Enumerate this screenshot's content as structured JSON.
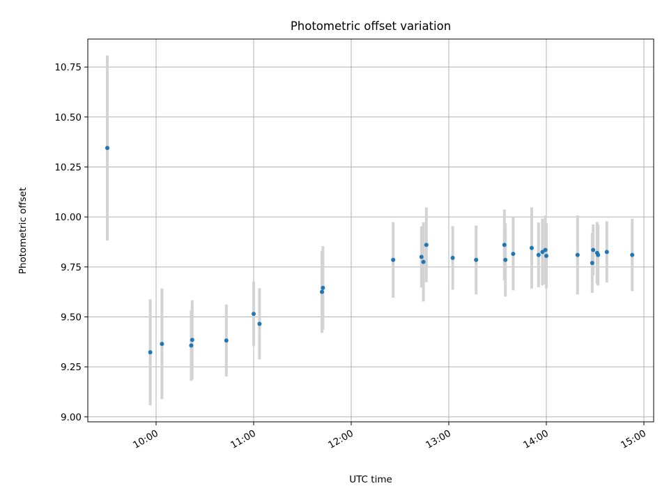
{
  "chart_data": {
    "type": "scatter",
    "title": "Photometric offset variation",
    "xlabel": "UTC time",
    "ylabel": "Photometric offset",
    "grid": true,
    "xlim_hours": [
      9.3,
      15.1
    ],
    "ylim": [
      8.975,
      10.89
    ],
    "xticks": [
      {
        "value": 10,
        "label": "10:00"
      },
      {
        "value": 11,
        "label": "11:00"
      },
      {
        "value": 12,
        "label": "12:00"
      },
      {
        "value": 13,
        "label": "13:00"
      },
      {
        "value": 14,
        "label": "14:00"
      },
      {
        "value": 15,
        "label": "15:00"
      }
    ],
    "yticks": [
      {
        "value": 9.0,
        "label": "9.00"
      },
      {
        "value": 9.25,
        "label": "9.25"
      },
      {
        "value": 9.5,
        "label": "9.50"
      },
      {
        "value": 9.75,
        "label": "9.75"
      },
      {
        "value": 10.0,
        "label": "10.00"
      },
      {
        "value": 10.25,
        "label": "10.25"
      },
      {
        "value": 10.5,
        "label": "10.50"
      },
      {
        "value": 10.75,
        "label": "10.75"
      }
    ],
    "colors": {
      "point": "#1f77b4",
      "errorbar": "#d3d3d3",
      "grid": "#b0b0b0"
    },
    "points": [
      {
        "t": 9.5,
        "y": 10.345,
        "err": 0.463
      },
      {
        "t": 9.94,
        "y": 9.323,
        "err": 0.265
      },
      {
        "t": 10.06,
        "y": 9.365,
        "err": 0.277
      },
      {
        "t": 10.36,
        "y": 9.357,
        "err": 0.177
      },
      {
        "t": 10.37,
        "y": 9.385,
        "err": 0.198
      },
      {
        "t": 10.72,
        "y": 9.382,
        "err": 0.18
      },
      {
        "t": 11.0,
        "y": 9.515,
        "err": 0.161
      },
      {
        "t": 11.06,
        "y": 9.465,
        "err": 0.178
      },
      {
        "t": 11.7,
        "y": 9.625,
        "err": 0.205
      },
      {
        "t": 11.71,
        "y": 9.645,
        "err": 0.209
      },
      {
        "t": 12.43,
        "y": 9.785,
        "err": 0.189
      },
      {
        "t": 12.72,
        "y": 9.8,
        "err": 0.153
      },
      {
        "t": 12.74,
        "y": 9.775,
        "err": 0.198
      },
      {
        "t": 12.77,
        "y": 9.86,
        "err": 0.187
      },
      {
        "t": 13.04,
        "y": 9.795,
        "err": 0.159
      },
      {
        "t": 13.28,
        "y": 9.785,
        "err": 0.172
      },
      {
        "t": 13.57,
        "y": 9.86,
        "err": 0.177
      },
      {
        "t": 13.58,
        "y": 9.785,
        "err": 0.183
      },
      {
        "t": 13.66,
        "y": 9.815,
        "err": 0.182
      },
      {
        "t": 13.85,
        "y": 9.845,
        "err": 0.203
      },
      {
        "t": 13.92,
        "y": 9.81,
        "err": 0.162
      },
      {
        "t": 13.96,
        "y": 9.825,
        "err": 0.167
      },
      {
        "t": 13.99,
        "y": 9.835,
        "err": 0.172
      },
      {
        "t": 14.0,
        "y": 9.805,
        "err": 0.163
      },
      {
        "t": 14.32,
        "y": 9.81,
        "err": 0.198
      },
      {
        "t": 14.47,
        "y": 9.77,
        "err": 0.15
      },
      {
        "t": 14.48,
        "y": 9.835,
        "err": 0.127
      },
      {
        "t": 14.52,
        "y": 9.82,
        "err": 0.155
      },
      {
        "t": 14.53,
        "y": 9.81,
        "err": 0.153
      },
      {
        "t": 14.62,
        "y": 9.825,
        "err": 0.153
      },
      {
        "t": 14.88,
        "y": 9.81,
        "err": 0.181
      }
    ]
  }
}
